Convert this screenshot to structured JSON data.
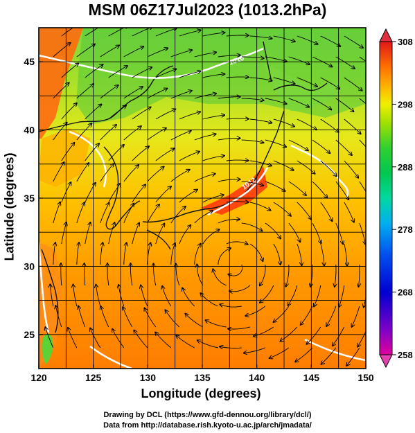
{
  "title": "MSM 06Z17Jul2023 (1013.2hPa)",
  "axes": {
    "xlabel": "Longitude (degrees)",
    "ylabel": "Latitude  (degrees)",
    "xlim": [
      120,
      150
    ],
    "ylim": [
      22.5,
      47.5
    ],
    "xticks": [
      "120",
      "125",
      "130",
      "135",
      "140",
      "145",
      "150"
    ],
    "yticks": [
      "25",
      "30",
      "35",
      "40",
      "45"
    ]
  },
  "colorbar": {
    "min": 258,
    "max": 308,
    "tick_labels": [
      "308",
      "298",
      "288",
      "278",
      "268",
      "258"
    ],
    "colors": [
      "#e0009c",
      "#7d00c8",
      "#0000d2",
      "#0050f0",
      "#00b0f0",
      "#00d8a0",
      "#00c850",
      "#30d030",
      "#a0e000",
      "#f0f000",
      "#ffb000",
      "#ff7000",
      "#ff3000",
      "#e01818"
    ]
  },
  "contour_labels": [
    "1012",
    "1010"
  ],
  "credits": {
    "line1": "Drawing by DCL (https://www.gfd-dennou.org/library/dcl/)",
    "line2": "Data from http://database.rish.kyoto-u.ac.jp/arch/jmadata/"
  }
}
